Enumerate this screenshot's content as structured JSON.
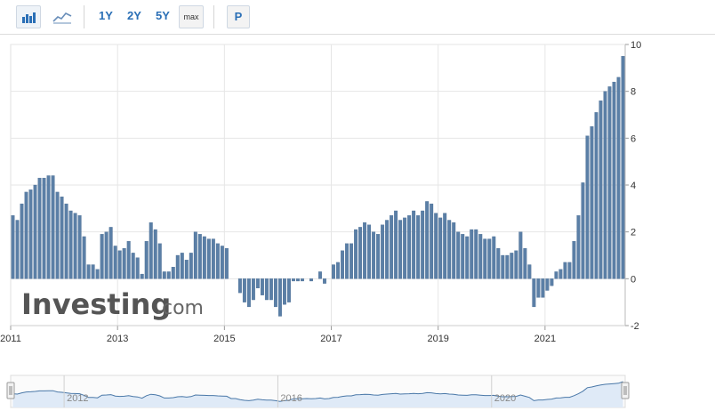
{
  "toolbar": {
    "bar_icon": "bar-chart-icon",
    "line_icon": "line-chart-icon",
    "range_buttons": [
      "1Y",
      "2Y",
      "5Y"
    ],
    "max_label": "max",
    "p_label": "P"
  },
  "watermark": {
    "brand": "Investing",
    "suffix": ".com"
  },
  "colors": {
    "bar": "#5b7fa6",
    "bar_stroke": "#3e638c",
    "grid": "#e6e6e6",
    "nav_fill": "#dfeaf7",
    "nav_line": "#4a78a8"
  },
  "chart_data": {
    "type": "bar",
    "title": "",
    "xlabel": "",
    "ylabel": "",
    "ylim": [
      -2,
      10
    ],
    "y_ticks": [
      10,
      8,
      6,
      4,
      2,
      0,
      -2
    ],
    "x_tick_labels": [
      "2011",
      "2013",
      "2015",
      "2017",
      "2019",
      "2021"
    ],
    "x_start": "2011-01",
    "grid": true,
    "series": [
      {
        "values": [
          2.7,
          2.5,
          3.2,
          3.7,
          3.8,
          4.0,
          4.3,
          4.3,
          4.4,
          4.4,
          3.7,
          3.5,
          3.2,
          2.9,
          2.8,
          2.7,
          1.8,
          0.6,
          0.6,
          0.4,
          1.9,
          2.0,
          2.2,
          1.4,
          1.2,
          1.3,
          1.6,
          1.1,
          0.9,
          0.2,
          1.6,
          2.4,
          2.1,
          1.5,
          0.3,
          0.3,
          0.5,
          1.0,
          1.1,
          0.8,
          1.1,
          2.0,
          1.9,
          1.8,
          1.7,
          1.7,
          1.5,
          1.4,
          1.3,
          0.0,
          0.0,
          -0.6,
          -1.0,
          -1.2,
          -0.9,
          -0.4,
          -0.7,
          -0.9,
          -0.9,
          -1.2,
          -1.6,
          -1.1,
          -1.0,
          -0.1,
          -0.1,
          -0.1,
          0.0,
          -0.1,
          0.0,
          0.3,
          -0.2,
          0.0,
          0.6,
          0.7,
          1.2,
          1.5,
          1.5,
          2.1,
          2.2,
          2.4,
          2.3,
          2.0,
          1.9,
          2.3,
          2.5,
          2.7,
          2.9,
          2.5,
          2.6,
          2.7,
          2.9,
          2.7,
          2.9,
          3.3,
          3.2,
          2.8,
          2.6,
          2.8,
          2.5,
          2.4,
          2.0,
          1.9,
          1.8,
          2.1,
          2.1,
          1.9,
          1.7,
          1.7,
          1.8,
          1.3,
          1.0,
          1.0,
          1.1,
          1.2,
          2.0,
          1.3,
          0.6,
          -1.2,
          -0.8,
          -0.8,
          -0.5,
          -0.3,
          0.3,
          0.4,
          0.7,
          0.7,
          1.6,
          2.7,
          4.1,
          6.1,
          6.5,
          7.1,
          7.6,
          8.0,
          8.2,
          8.4,
          8.6,
          9.5
        ]
      }
    ],
    "navigator": {
      "x_tick_labels": [
        "2012",
        "2016",
        "2020"
      ]
    }
  }
}
